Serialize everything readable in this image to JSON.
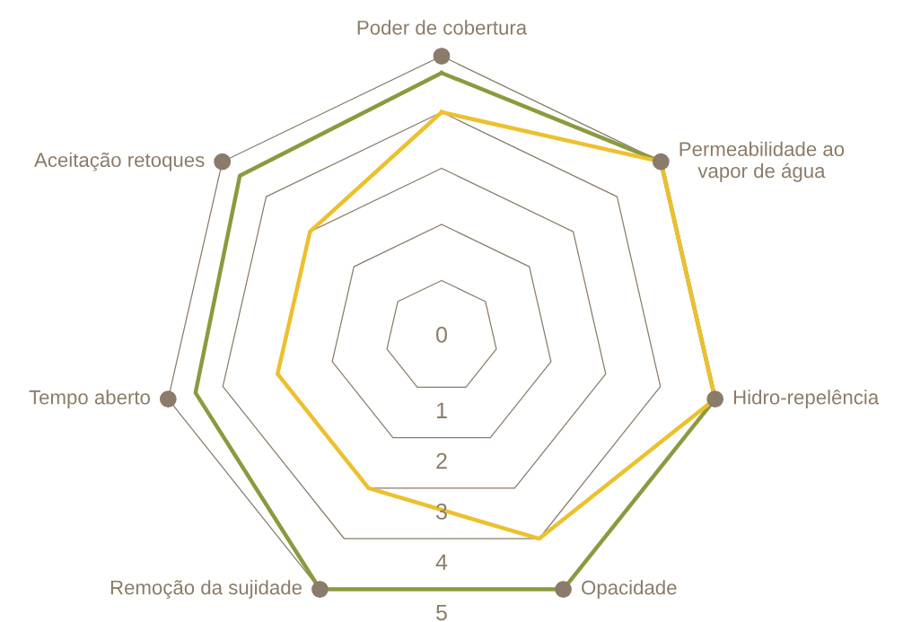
{
  "chart_data": {
    "type": "radar",
    "categories": [
      "Poder de cobertura",
      "Permeabilidade ao\nvapor de água",
      "Hidro-repelência",
      "Opacidade",
      "Remoção da sujidade",
      "Tempo aberto",
      "Aceitação retoques"
    ],
    "series": [
      {
        "color": "#8a9a3e",
        "values": [
          4.7,
          5,
          5,
          5,
          5,
          4.5,
          4.6
        ]
      },
      {
        "color": "#ecc02e",
        "values": [
          4,
          5,
          5,
          4,
          3,
          3,
          3
        ]
      }
    ],
    "ylim": [
      0,
      5
    ],
    "yticks": [
      0,
      1,
      2,
      3,
      4,
      5
    ],
    "grid": true,
    "marker": "none",
    "line_style": "solid"
  }
}
